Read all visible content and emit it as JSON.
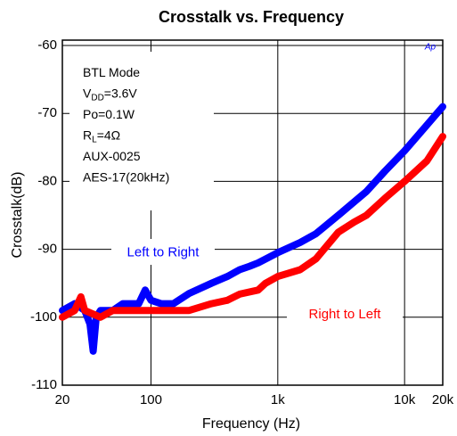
{
  "chart_data": {
    "type": "line",
    "title": "Crosstalk vs. Frequency",
    "xlabel": "Frequency (Hz)",
    "ylabel": "Crosstalk(dB)",
    "logo": "Ap",
    "xscale": "log",
    "xlim": [
      20,
      20000
    ],
    "xticks": [
      20,
      100,
      {
        "value": 1000,
        "label": "1k"
      },
      {
        "value": 10000,
        "label": "10k"
      },
      {
        "value": 20000,
        "label": "20k"
      }
    ],
    "ylim": [
      -110,
      -60
    ],
    "yticks": [
      -110,
      -100,
      -90,
      -80,
      -70,
      -60
    ],
    "grid": true,
    "annotations": [
      {
        "text": "BTL Mode"
      },
      {
        "text": "V",
        "sub": "DD",
        "after": "=3.6V"
      },
      {
        "text": "Po=0.1W"
      },
      {
        "text": "R",
        "sub": "L",
        "after": "=4Ω"
      },
      {
        "text": "AUX-0025"
      },
      {
        "text": "AES-17(20kHz)"
      }
    ],
    "series": [
      {
        "name": "Left to Right",
        "color": "#0000ff",
        "x": [
          20,
          25,
          30,
          33,
          35,
          37,
          40,
          50,
          60,
          80,
          90,
          100,
          120,
          150,
          200,
          300,
          400,
          500,
          600,
          700,
          1000,
          1500,
          2000,
          3000,
          5000,
          7000,
          10000,
          15000,
          20000
        ],
        "values": [
          -99,
          -98,
          -99,
          -101,
          -105,
          -100,
          -99,
          -99,
          -98,
          -98,
          -96,
          -97.5,
          -98,
          -98,
          -96.5,
          -95,
          -94,
          -93,
          -92.5,
          -92,
          -90.5,
          -89,
          -87.7,
          -85,
          -81.5,
          -78.5,
          -75.5,
          -71.7,
          -69
        ]
      },
      {
        "name": "Right to Left",
        "color": "#ff0000",
        "x": [
          20,
          25,
          28,
          30,
          40,
          50,
          70,
          100,
          150,
          200,
          300,
          400,
          500,
          700,
          800,
          1000,
          1500,
          2000,
          3000,
          4000,
          5000,
          7000,
          10000,
          15000,
          20000
        ],
        "values": [
          -100,
          -99,
          -97,
          -99,
          -100,
          -99,
          -99,
          -99,
          -99,
          -99,
          -98,
          -97.5,
          -96.6,
          -96,
          -95,
          -94,
          -93,
          -91.4,
          -87.5,
          -86,
          -85,
          -82.5,
          -80,
          -77,
          -73.4
        ]
      }
    ]
  }
}
